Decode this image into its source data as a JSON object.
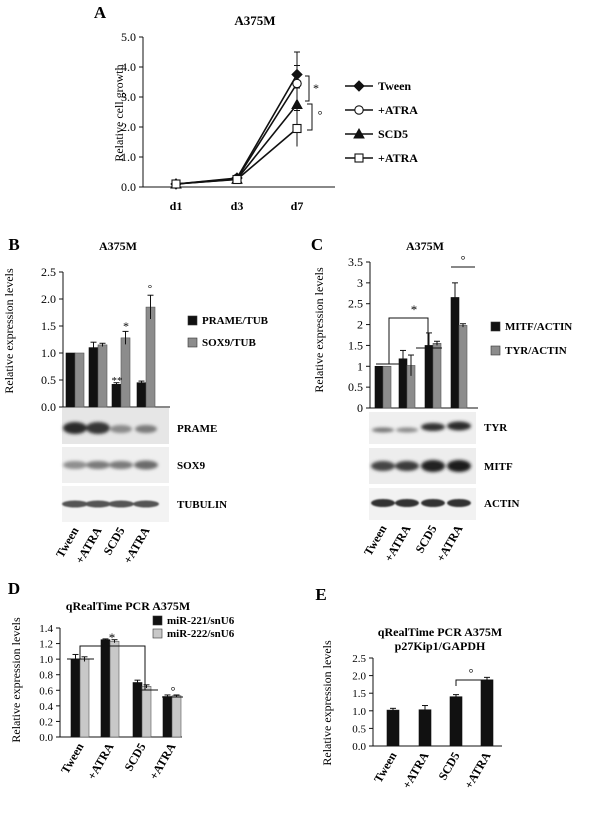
{
  "colors": {
    "black": "#111111",
    "gray": "#8c8c8c",
    "lightgray": "#c8c8c8",
    "white": "#ffffff"
  },
  "chart_data": [
    {
      "panel": "A",
      "type": "line",
      "title": "A375M",
      "ylabel": "Relative cell growth",
      "categories": [
        "d1",
        "d3",
        "d7"
      ],
      "ylim": [
        0,
        5
      ],
      "yticks": [
        "0.0",
        "1.0",
        "2.0",
        "3.0",
        "4.0",
        "5.0"
      ],
      "series": [
        {
          "name": "Tween",
          "marker": "diamond",
          "values": [
            0.1,
            0.3,
            3.75
          ],
          "err": [
            0.03,
            0.1,
            0.75
          ]
        },
        {
          "name": "+ATRA",
          "marker": "circle",
          "values": [
            0.1,
            0.28,
            3.45
          ],
          "err": [
            0.03,
            0.1,
            0.6
          ]
        },
        {
          "name": "SCD5",
          "marker": "triangle",
          "values": [
            0.1,
            0.26,
            2.75
          ],
          "err": [
            0.03,
            0.1,
            0.55
          ]
        },
        {
          "name": "+ATRA",
          "marker": "square",
          "values": [
            0.1,
            0.25,
            1.95
          ],
          "err": [
            0.03,
            0.1,
            0.6
          ]
        }
      ],
      "annotations": [
        "*",
        "°"
      ]
    },
    {
      "panel": "B",
      "type": "bar",
      "title": "A375M",
      "ylabel": "Relative expression levels",
      "categories": [
        "Tween",
        "+ATRA",
        "SCD5",
        "+ATRA"
      ],
      "ylim": [
        0,
        2.5
      ],
      "yticks": [
        "0.0",
        "0.5",
        "1.0",
        "1.5",
        "2.0",
        "2.5"
      ],
      "series": [
        {
          "name": "PRAME/TUB",
          "color": "black",
          "values": [
            1.0,
            1.1,
            0.42,
            0.45
          ],
          "err": [
            0.0,
            0.1,
            0.03,
            0.03
          ]
        },
        {
          "name": "SOX9/TUB",
          "color": "gray",
          "values": [
            1.0,
            1.15,
            1.28,
            1.85
          ],
          "err": [
            0.0,
            0.03,
            0.12,
            0.22
          ]
        }
      ],
      "annotations": [
        "**",
        "*",
        "°"
      ],
      "blot_labels": [
        "PRAME",
        "SOX9",
        "TUBULIN"
      ]
    },
    {
      "panel": "C",
      "type": "bar",
      "title": "A375M",
      "ylabel": "Relative expression levels",
      "categories": [
        "Tween",
        "+ATRA",
        "SCD5",
        "+ATRA"
      ],
      "ylim": [
        0,
        3.5
      ],
      "yticks": [
        "0",
        "0.5",
        "1",
        "1.5",
        "2",
        "2.5",
        "3",
        "3.5"
      ],
      "series": [
        {
          "name": "MITF/ACTIN",
          "color": "black",
          "values": [
            1.0,
            1.18,
            1.5,
            2.65
          ],
          "err": [
            0.0,
            0.2,
            0.3,
            0.35
          ]
        },
        {
          "name": "TYR/ACTIN",
          "color": "gray",
          "values": [
            1.0,
            1.02,
            1.55,
            1.98
          ],
          "err": [
            0.0,
            0.25,
            0.05,
            0.04
          ]
        }
      ],
      "annotations": [
        "*",
        "°"
      ],
      "blot_labels": [
        "TYR",
        "MITF",
        "ACTIN"
      ]
    },
    {
      "panel": "D",
      "type": "bar",
      "title": "qRealTime PCR A375M",
      "ylabel": "Relative expression levels",
      "categories": [
        "Tween",
        "+ATRA",
        "SCD5",
        "+ATRA"
      ],
      "ylim": [
        0,
        1.4
      ],
      "yticks": [
        "0.0",
        "0.2",
        "0.4",
        "0.6",
        "0.8",
        "1.0",
        "1.2",
        "1.4"
      ],
      "series": [
        {
          "name": "miR-221/snU6",
          "color": "black",
          "values": [
            1.0,
            1.25,
            0.7,
            0.52
          ],
          "err": [
            0.06,
            0.01,
            0.03,
            0.02
          ]
        },
        {
          "name": "miR-222/snU6",
          "color": "lightgray",
          "values": [
            1.0,
            1.23,
            0.65,
            0.53
          ],
          "err": [
            0.03,
            0.02,
            0.02,
            0.01
          ]
        }
      ],
      "annotations": [
        "*",
        "°"
      ]
    },
    {
      "panel": "E",
      "type": "bar",
      "title": "qRealTime PCR A375M",
      "subtitle": "p27Kip1/GAPDH",
      "ylabel": "Relative expression levels",
      "categories": [
        "Tween",
        "+ATRA",
        "SCD5",
        "+ATRA"
      ],
      "ylim": [
        0,
        2.5
      ],
      "yticks": [
        "0.0",
        "0.5",
        "1.0",
        "1.5",
        "2.0",
        "2.5"
      ],
      "series": [
        {
          "name": "p27Kip1/GAPDH",
          "color": "black",
          "values": [
            1.02,
            1.03,
            1.4,
            1.88
          ],
          "err": [
            0.05,
            0.12,
            0.06,
            0.07
          ]
        }
      ],
      "annotations": [
        "°"
      ]
    }
  ]
}
